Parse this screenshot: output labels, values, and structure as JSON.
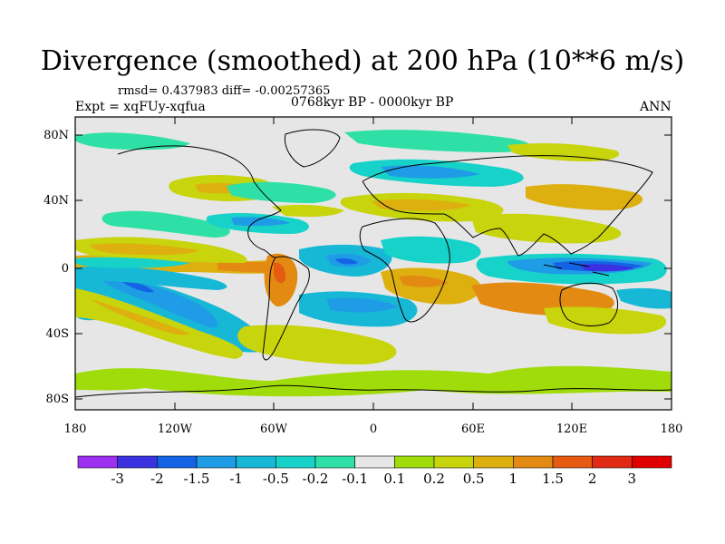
{
  "title": "Divergence (smoothed) at 200 hPa (10**6 m/s)",
  "stats": "rmsd= 0.437983 diff= -0.00257365",
  "experiment": "Expt = xqFUy-xqfua",
  "period": "0768kyr BP - 0000kyr BP",
  "season": "ANN",
  "lat_ticks": [
    "80N",
    "40N",
    "0",
    "40S",
    "80S"
  ],
  "lon_ticks": [
    "180",
    "120W",
    "60W",
    "0",
    "60E",
    "120E",
    "180"
  ],
  "colorbar": {
    "labels": [
      "-3",
      "-2",
      "-1.5",
      "-1",
      "-0.5",
      "-0.2",
      "-0.1",
      "0.1",
      "0.2",
      "0.5",
      "1",
      "1.5",
      "2",
      "3"
    ],
    "colors": [
      "#9d2ff0",
      "#3a32e0",
      "#1463e4",
      "#1f9ce6",
      "#17b8d6",
      "#16d2c8",
      "#2fe0a6",
      "#e6e6e6",
      "#a0dc0a",
      "#c8d40c",
      "#ddb010",
      "#e28a12",
      "#e65a12",
      "#e02a14",
      "#e00000"
    ]
  },
  "colors": {
    "ocean_background": "#e6e6e6",
    "coast": "#000000"
  }
}
